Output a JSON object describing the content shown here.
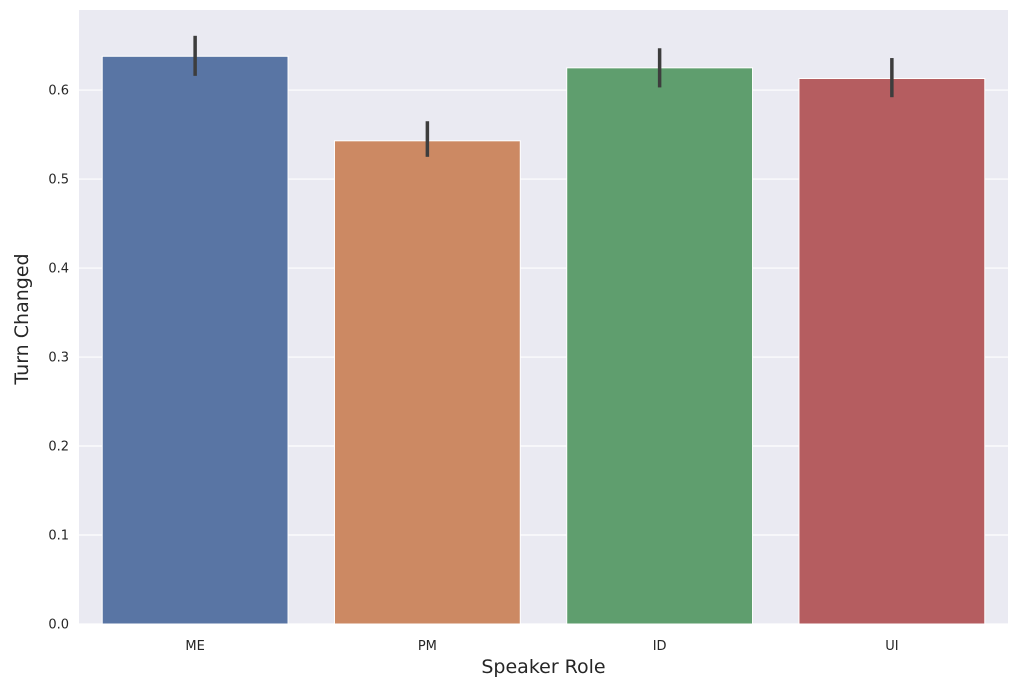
{
  "chart_data": {
    "type": "bar",
    "categories": [
      "ME",
      "PM",
      "ID",
      "UI"
    ],
    "values": [
      0.638,
      0.543,
      0.625,
      0.613
    ],
    "error_bars": [
      {
        "low": 0.616,
        "high": 0.661
      },
      {
        "low": 0.525,
        "high": 0.565
      },
      {
        "low": 0.603,
        "high": 0.647
      },
      {
        "low": 0.592,
        "high": 0.636
      }
    ],
    "colors": [
      "#5975A4",
      "#CC8963",
      "#5F9E6E",
      "#B55D60"
    ],
    "error_color": "#3d3d3d",
    "background_color": "#EAEAF2",
    "grid": true,
    "title": "",
    "xlabel": "Speaker Role",
    "ylabel": "Turn Changed",
    "ylim": [
      0,
      0.69
    ],
    "yticks": [
      0.0,
      0.1,
      0.2,
      0.3,
      0.4,
      0.5,
      0.6
    ],
    "ytick_labels": [
      "0.0",
      "0.1",
      "0.2",
      "0.3",
      "0.4",
      "0.5",
      "0.6"
    ]
  }
}
